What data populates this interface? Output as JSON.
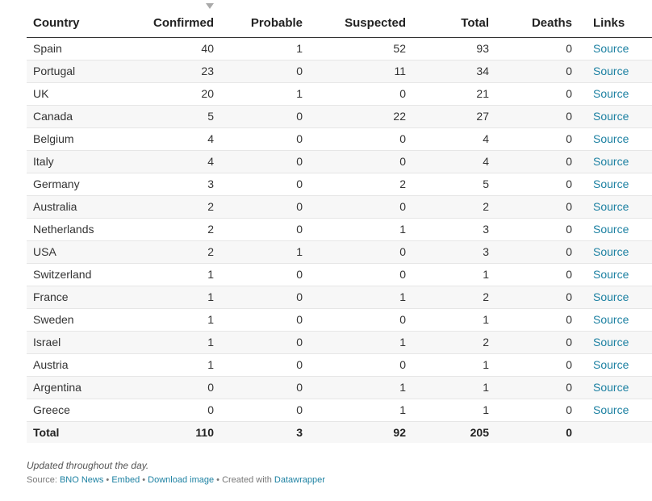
{
  "table": {
    "headers": {
      "country": "Country",
      "confirmed": "Confirmed",
      "probable": "Probable",
      "suspected": "Suspected",
      "total": "Total",
      "deaths": "Deaths",
      "links": "Links"
    },
    "rows": [
      {
        "country": "Spain",
        "confirmed": "40",
        "probable": "1",
        "suspected": "52",
        "total": "93",
        "deaths": "0",
        "link": "Source"
      },
      {
        "country": "Portugal",
        "confirmed": "23",
        "probable": "0",
        "suspected": "11",
        "total": "34",
        "deaths": "0",
        "link": "Source"
      },
      {
        "country": "UK",
        "confirmed": "20",
        "probable": "1",
        "suspected": "0",
        "total": "21",
        "deaths": "0",
        "link": "Source"
      },
      {
        "country": "Canada",
        "confirmed": "5",
        "probable": "0",
        "suspected": "22",
        "total": "27",
        "deaths": "0",
        "link": "Source"
      },
      {
        "country": "Belgium",
        "confirmed": "4",
        "probable": "0",
        "suspected": "0",
        "total": "4",
        "deaths": "0",
        "link": "Source"
      },
      {
        "country": "Italy",
        "confirmed": "4",
        "probable": "0",
        "suspected": "0",
        "total": "4",
        "deaths": "0",
        "link": "Source"
      },
      {
        "country": "Germany",
        "confirmed": "3",
        "probable": "0",
        "suspected": "2",
        "total": "5",
        "deaths": "0",
        "link": "Source"
      },
      {
        "country": "Australia",
        "confirmed": "2",
        "probable": "0",
        "suspected": "0",
        "total": "2",
        "deaths": "0",
        "link": "Source"
      },
      {
        "country": "Netherlands",
        "confirmed": "2",
        "probable": "0",
        "suspected": "1",
        "total": "3",
        "deaths": "0",
        "link": "Source"
      },
      {
        "country": "USA",
        "confirmed": "2",
        "probable": "1",
        "suspected": "0",
        "total": "3",
        "deaths": "0",
        "link": "Source"
      },
      {
        "country": "Switzerland",
        "confirmed": "1",
        "probable": "0",
        "suspected": "0",
        "total": "1",
        "deaths": "0",
        "link": "Source"
      },
      {
        "country": "France",
        "confirmed": "1",
        "probable": "0",
        "suspected": "1",
        "total": "2",
        "deaths": "0",
        "link": "Source"
      },
      {
        "country": "Sweden",
        "confirmed": "1",
        "probable": "0",
        "suspected": "0",
        "total": "1",
        "deaths": "0",
        "link": "Source"
      },
      {
        "country": "Israel",
        "confirmed": "1",
        "probable": "0",
        "suspected": "1",
        "total": "2",
        "deaths": "0",
        "link": "Source"
      },
      {
        "country": "Austria",
        "confirmed": "1",
        "probable": "0",
        "suspected": "0",
        "total": "1",
        "deaths": "0",
        "link": "Source"
      },
      {
        "country": "Argentina",
        "confirmed": "0",
        "probable": "0",
        "suspected": "1",
        "total": "1",
        "deaths": "0",
        "link": "Source"
      },
      {
        "country": "Greece",
        "confirmed": "0",
        "probable": "0",
        "suspected": "1",
        "total": "1",
        "deaths": "0",
        "link": "Source"
      }
    ],
    "totals": {
      "label": "Total",
      "confirmed": "110",
      "probable": "3",
      "suspected": "92",
      "total": "205",
      "deaths": "0"
    },
    "sort_icon": "sort-descending-icon"
  },
  "notes": "Updated throughout the day.",
  "footer": {
    "source_prefix": "Source: ",
    "source_link": "BNO News",
    "sep1": " • ",
    "embed": "Embed",
    "sep2": " • ",
    "download": "Download image",
    "sep3": " • Created with ",
    "datawrapper": "Datawrapper"
  },
  "colors": {
    "link": "#1d81a2",
    "header_text": "#222222",
    "row_stripe": "#f7f7f7"
  }
}
